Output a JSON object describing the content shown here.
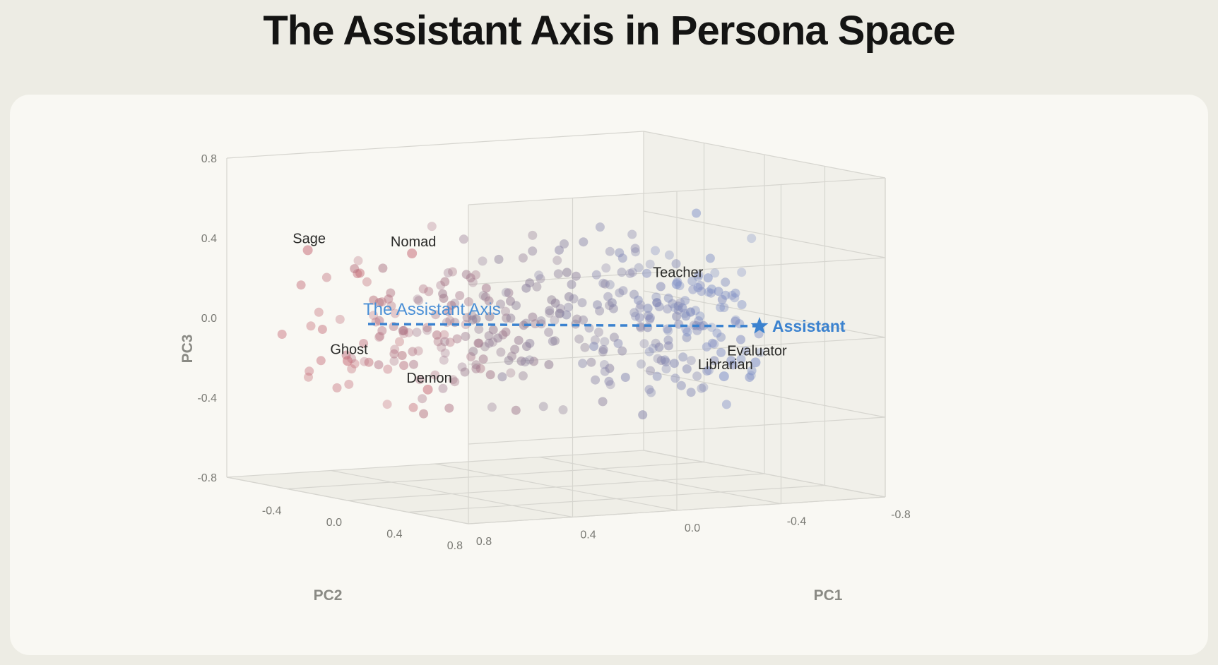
{
  "title": "The Assistant Axis in Persona Space",
  "colors": {
    "background": "#edece4",
    "card": "#f9f8f3",
    "role_point": "#c8707a",
    "assistant_point": "#7d8fc8",
    "mixed_point": "#8a7a94",
    "axis_line": "#3b82cf",
    "grid": "#d6d5cf"
  },
  "chart_data": {
    "type": "scatter",
    "projection": "3d",
    "title": "The Assistant Axis in Persona Space",
    "xlabel": "PC1",
    "ylabel": "PC2",
    "zlabel": "PC3",
    "xlim": [
      -0.8,
      0.8
    ],
    "ylim": [
      -0.8,
      0.8
    ],
    "zlim": [
      -0.8,
      0.8
    ],
    "x_ticks": [
      "0.8",
      "0.4",
      "0.0",
      "-0.4",
      "-0.8"
    ],
    "y_ticks": [
      "-0.4",
      "0.0",
      "0.4",
      "0.8"
    ],
    "z_ticks": [
      "0.8",
      "0.4",
      "0.0",
      "-0.4",
      "-0.8"
    ],
    "grid": true,
    "axis_annotation": "The Assistant Axis",
    "assistant": {
      "label": "Assistant",
      "icon": "star-icon",
      "position": [
        -0.6,
        0.0,
        0.0
      ]
    },
    "labeled_personas": [
      {
        "label": "Sage",
        "position": [
          0.75,
          -0.35,
          0.4
        ]
      },
      {
        "label": "Nomad",
        "position": [
          0.35,
          -0.35,
          0.35
        ]
      },
      {
        "label": "Ghost",
        "position": [
          0.8,
          0.0,
          -0.1
        ]
      },
      {
        "label": "Demon",
        "position": [
          0.55,
          0.1,
          -0.25
        ]
      },
      {
        "label": "Teacher",
        "position": [
          -0.55,
          -0.15,
          0.15
        ]
      },
      {
        "label": "Evaluator",
        "position": [
          -0.65,
          0.2,
          -0.2
        ]
      },
      {
        "label": "Librarian",
        "position": [
          -0.5,
          0.25,
          -0.25
        ]
      }
    ],
    "point_cloud": {
      "count": 380,
      "x_range": [
        -0.7,
        0.85
      ],
      "color_by": "PC1"
    }
  }
}
